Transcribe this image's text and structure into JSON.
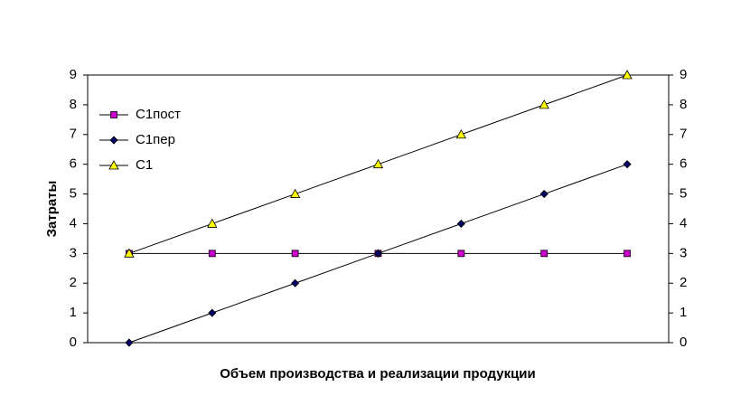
{
  "chart_data": {
    "type": "line",
    "x_label": "Объем производства и реализации продукции",
    "y_label": "Затраты",
    "categories": [
      null,
      null,
      null,
      null,
      null,
      null,
      null
    ],
    "series": [
      {
        "name": "С1пост",
        "color": "#cc00cc",
        "marker": "square",
        "values": [
          3,
          3,
          3,
          3,
          3,
          3,
          3
        ]
      },
      {
        "name": "С1пер",
        "color": "#000066",
        "marker": "diamond",
        "values": [
          0,
          1,
          2,
          3,
          4,
          5,
          6
        ]
      },
      {
        "name": "С1",
        "color": "#ffff00",
        "marker": "triangle",
        "values": [
          3,
          4,
          5,
          6,
          7,
          8,
          9
        ]
      }
    ],
    "line_color": "#000000",
    "ylim": [
      0,
      9
    ],
    "yticks": [
      0,
      1,
      2,
      3,
      4,
      5,
      6,
      7,
      8,
      9
    ],
    "y2lim": [
      0,
      9
    ],
    "y2ticks": [
      0,
      1,
      2,
      3,
      4,
      5,
      6,
      7,
      8,
      9
    ],
    "legend": "top-left",
    "grid": false
  }
}
